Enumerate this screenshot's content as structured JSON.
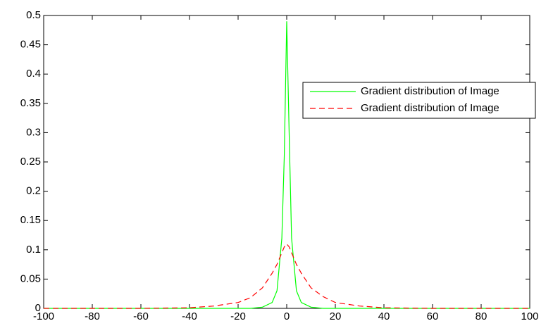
{
  "chart_data": {
    "type": "line",
    "x": [
      -100,
      -60,
      -40,
      -30,
      -20,
      -15,
      -10,
      -6,
      -4,
      -2,
      -1,
      0,
      1,
      2,
      4,
      6,
      10,
      15,
      20,
      30,
      40,
      60,
      100
    ],
    "series": [
      {
        "name": "Gradient distribution of Image",
        "color": "#00ff00",
        "dash": "solid",
        "values": [
          0,
          0,
          0,
          0,
          0,
          0,
          0.002,
          0.01,
          0.03,
          0.12,
          0.26,
          0.49,
          0.3,
          0.12,
          0.03,
          0.01,
          0.002,
          0,
          0,
          0,
          0,
          0,
          0
        ]
      },
      {
        "name": "Gradient distribution of Image",
        "color": "#ff0000",
        "dash": "dashed",
        "values": [
          0,
          0,
          0.001,
          0.004,
          0.01,
          0.018,
          0.035,
          0.06,
          0.075,
          0.095,
          0.105,
          0.11,
          0.105,
          0.095,
          0.075,
          0.06,
          0.035,
          0.02,
          0.01,
          0.004,
          0.001,
          0,
          0
        ]
      }
    ],
    "xlim": [
      -100,
      100
    ],
    "xticks": [
      -100,
      -80,
      -60,
      -40,
      -20,
      0,
      20,
      40,
      60,
      80,
      100
    ],
    "ylim": [
      0,
      0.5
    ],
    "yticks": [
      0,
      0.05,
      0.1,
      0.15,
      0.2,
      0.25,
      0.3,
      0.35,
      0.4,
      0.45,
      0.5
    ],
    "grid": false,
    "legend": "upper right"
  }
}
